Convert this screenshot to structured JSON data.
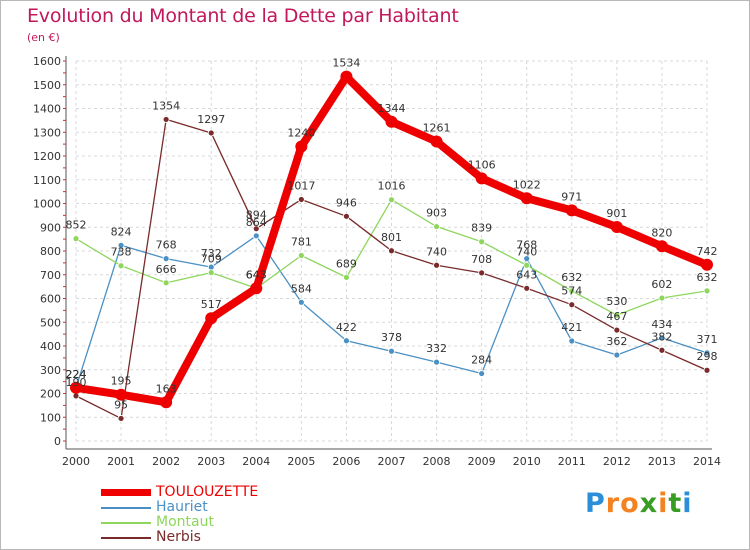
{
  "title": "Evolution du Montant de la Dette par Habitant",
  "unit_label": "(en €)",
  "logo": {
    "letters": [
      {
        "ch": "P",
        "color": "#2a8fd8"
      },
      {
        "ch": "r",
        "color": "#f58220"
      },
      {
        "ch": "o",
        "color": "#f58220"
      },
      {
        "ch": "x",
        "color": "#3a9d23"
      },
      {
        "ch": "i",
        "color": "#f58220"
      },
      {
        "ch": "t",
        "color": "#3a9d23"
      },
      {
        "ch": "i",
        "color": "#2a8fd8"
      }
    ]
  },
  "chart_data": {
    "type": "line",
    "x": [
      "2000",
      "2001",
      "2002",
      "2003",
      "2004",
      "2005",
      "2006",
      "2007",
      "2008",
      "2009",
      "2010",
      "2011",
      "2012",
      "2013",
      "2014"
    ],
    "ylim": [
      0,
      1600
    ],
    "yticks": [
      0,
      100,
      200,
      300,
      400,
      500,
      600,
      700,
      800,
      900,
      1000,
      1100,
      1200,
      1300,
      1400,
      1500,
      1600
    ],
    "grid": true,
    "legend_position": "bottom-left",
    "series": [
      {
        "name": "Hauriet",
        "color": "#4a90c4",
        "values": [
          224,
          824,
          768,
          732,
          864,
          584,
          422,
          378,
          332,
          284,
          768,
          421,
          362,
          434,
          371
        ]
      },
      {
        "name": "Montaut",
        "color": "#8ed65e",
        "values": [
          852,
          738,
          666,
          709,
          643,
          781,
          689,
          1016,
          903,
          839,
          740,
          632,
          530,
          602,
          632
        ]
      },
      {
        "name": "Nerbis",
        "color": "#7a2a2a",
        "values": [
          190,
          95,
          1354,
          1297,
          894,
          1017,
          946,
          801,
          740,
          708,
          643,
          574,
          467,
          382,
          298
        ]
      },
      {
        "name": "TOULOUZETTE",
        "color": "#ee0000",
        "values": [
          224,
          195,
          163,
          517,
          643,
          1240,
          1534,
          1344,
          1261,
          1106,
          1022,
          971,
          901,
          820,
          742
        ]
      }
    ],
    "legend_order": [
      "TOULOUZETTE",
      "Hauriet",
      "Montaut",
      "Nerbis"
    ]
  }
}
